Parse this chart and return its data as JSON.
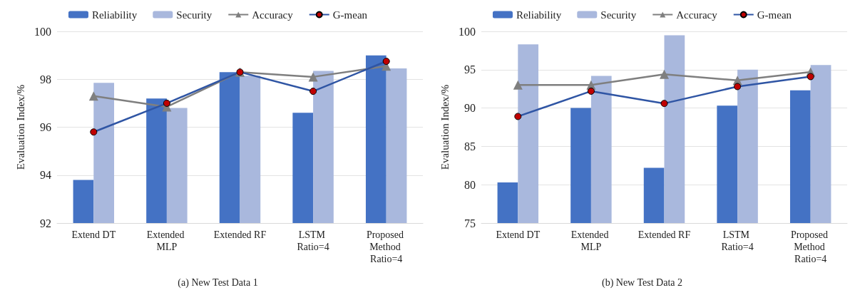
{
  "chart_data": [
    {
      "type": "bar",
      "title": "(a) New Test Data 1",
      "ylabel": "Evaluation Index/%",
      "categories": [
        "Extend DT",
        "Extended MLP",
        "Extended RF",
        "LSTM Ratio=4",
        "Proposed Method Ratio=4"
      ],
      "ylim": [
        92,
        100
      ],
      "yticks": [
        92,
        94,
        96,
        98,
        100
      ],
      "grid": "y",
      "legend": "top",
      "series": [
        {
          "name": "Reliability",
          "color": "#4472c4",
          "values": [
            93.8,
            97.2,
            98.3,
            96.6,
            99.0
          ]
        },
        {
          "name": "Security",
          "color": "#a9b8dd",
          "values": [
            97.85,
            96.8,
            98.15,
            98.35,
            98.45
          ]
        },
        {
          "name": "Accuracy",
          "type": "line",
          "color": "#7f7f7f",
          "marker": "triangle",
          "values": [
            97.3,
            96.85,
            98.3,
            98.1,
            98.55
          ]
        },
        {
          "name": "G-mean",
          "type": "line",
          "color": "#2f55a4",
          "marker": "circle",
          "values": [
            95.8,
            97.0,
            98.3,
            97.5,
            98.75
          ]
        }
      ]
    },
    {
      "type": "bar",
      "title": "(b) New Test Data 2",
      "ylabel": "Evaluation Index/%",
      "categories": [
        "Extend DT",
        "Extended MLP",
        "Extended RF",
        "LSTM Ratio=4",
        "Proposed Method Ratio=4"
      ],
      "ylim": [
        75,
        100
      ],
      "yticks": [
        75,
        80,
        85,
        90,
        95,
        100
      ],
      "grid": "y",
      "legend": "top",
      "series": [
        {
          "name": "Reliability",
          "color": "#4472c4",
          "values": [
            80.3,
            90.0,
            82.2,
            90.3,
            92.3
          ]
        },
        {
          "name": "Security",
          "color": "#a9b8dd",
          "values": [
            98.3,
            94.2,
            99.5,
            95.0,
            95.6
          ]
        },
        {
          "name": "Accuracy",
          "type": "line",
          "color": "#7f7f7f",
          "marker": "triangle",
          "values": [
            93.0,
            93.0,
            94.4,
            93.6,
            94.7
          ]
        },
        {
          "name": "G-mean",
          "type": "line",
          "color": "#2f55a4",
          "marker": "circle",
          "values": [
            88.9,
            92.2,
            90.6,
            92.8,
            94.1
          ]
        }
      ]
    }
  ]
}
